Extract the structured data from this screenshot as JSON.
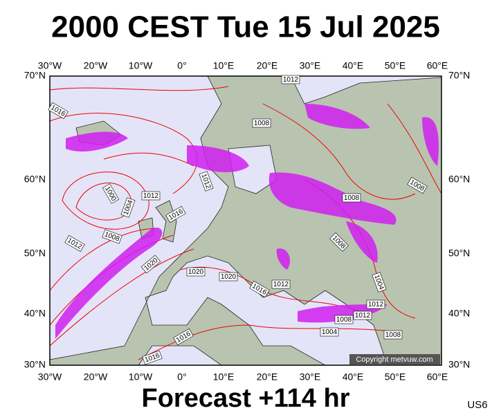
{
  "title": "2000 CEST Tue 15 Jul 2025",
  "lon_labels_top": [
    "30°W",
    "20°W",
    "10°W",
    "0°",
    "10°E",
    "20°E",
    "30°E",
    "40°E",
    "50°E",
    "60°E"
  ],
  "lon_labels_bottom": [
    "30°W",
    "20°W",
    "10°W",
    "0°",
    "10°E",
    "20°E",
    "30°E",
    "40°E",
    "50°E",
    "60°E"
  ],
  "lat_labels_left": [
    "70°N",
    "60°N",
    "50°N",
    "40°N",
    "30°N"
  ],
  "lat_labels_right": [
    "70°N",
    "60°N",
    "50°N",
    "40°N",
    "30°N"
  ],
  "isobar_labels": [
    "1012",
    "1016",
    "1008",
    "1012",
    "1000",
    "1004",
    "1012",
    "1016",
    "1008",
    "1012",
    "1020",
    "1008",
    "1008",
    "1008",
    "1020",
    "1020",
    "1016",
    "1012",
    "1004",
    "1012",
    "1012",
    "1008",
    "1004",
    "1008",
    "1016",
    "1016"
  ],
  "copyright": "Copyright metvuw.com",
  "footer": {
    "forecast": "Forecast +114 hr",
    "model": "US6"
  }
}
